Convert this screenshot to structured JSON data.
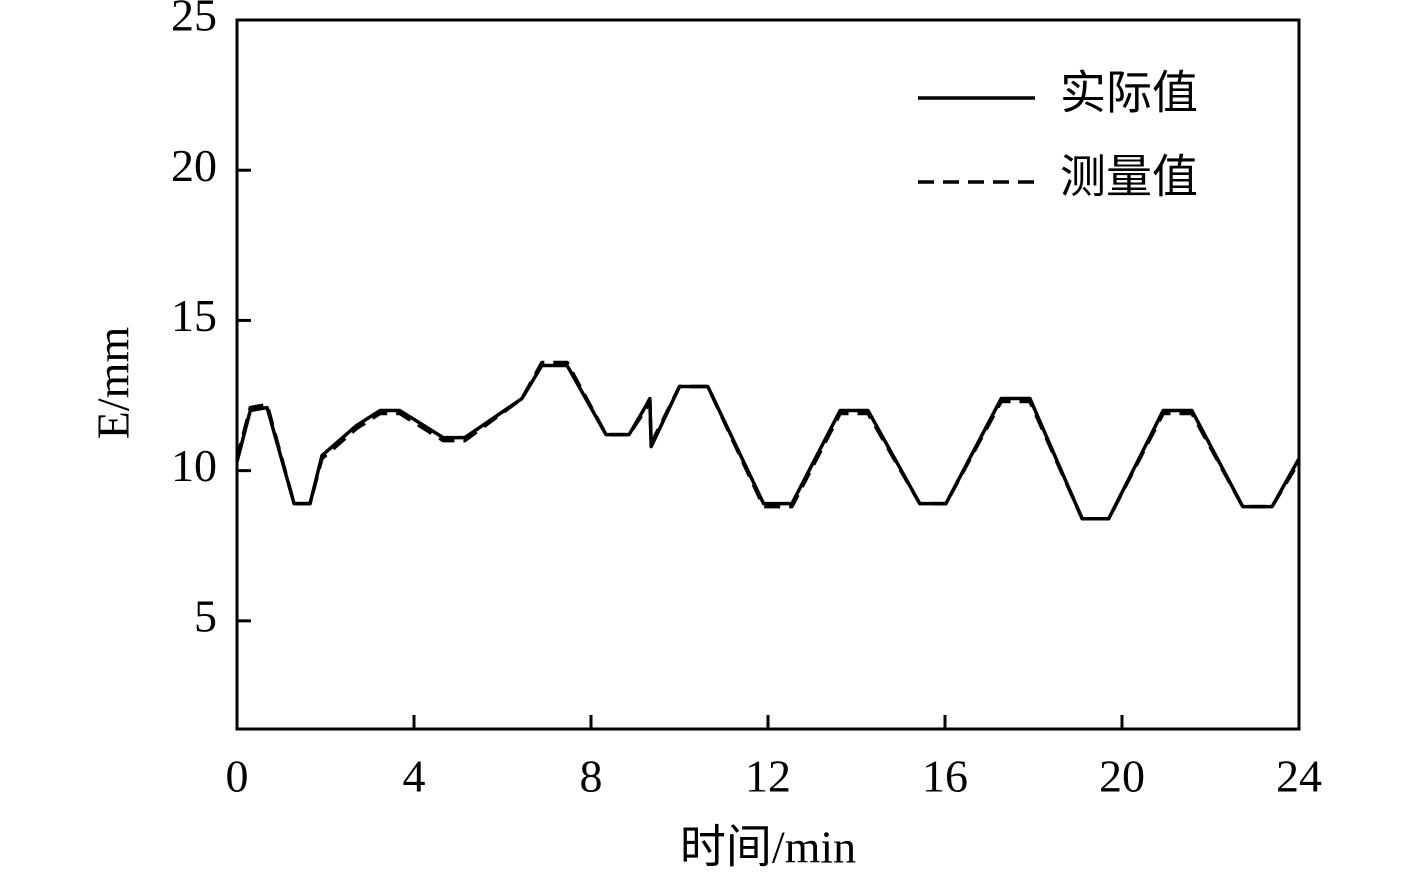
{
  "chart_data": {
    "type": "line",
    "xlabel": "时间/min",
    "ylabel": "E/mm",
    "x": [
      0,
      0.3,
      0.68,
      1.29,
      1.65,
      1.92,
      2.7,
      3.23,
      3.68,
      4.66,
      5.15,
      6.44,
      6.89,
      7.46,
      8.34,
      8.86,
      9.22,
      9.33,
      9.36,
      10.0,
      10.64,
      11.9,
      12.54,
      13.63,
      14.26,
      15.43,
      16.02,
      17.27,
      17.92,
      19.1,
      19.7,
      20.93,
      21.58,
      22.73,
      23.39,
      24
    ],
    "series": [
      {
        "name": "实际值",
        "color": "#000000",
        "dash": "solid",
        "values": [
          10.3,
          12.0,
          12.1,
          8.9,
          8.9,
          10.5,
          11.5,
          12.0,
          12.0,
          11.1,
          11.1,
          12.4,
          13.5,
          13.5,
          11.2,
          11.2,
          12.1,
          12.4,
          10.8,
          12.8,
          12.8,
          8.9,
          8.9,
          12.0,
          12.0,
          8.9,
          8.9,
          12.4,
          12.4,
          8.4,
          8.4,
          12.0,
          12.0,
          8.8,
          8.8,
          10.4
        ]
      },
      {
        "name": "测量值",
        "color": "#000000",
        "dash": "dashed",
        "values": [
          10.4,
          12.1,
          12.2,
          8.9,
          8.9,
          10.4,
          11.4,
          11.9,
          11.9,
          11.0,
          11.0,
          12.4,
          13.6,
          13.6,
          11.2,
          11.2,
          12.0,
          12.3,
          10.9,
          12.8,
          12.8,
          8.8,
          8.8,
          11.9,
          11.9,
          8.9,
          8.9,
          12.3,
          12.3,
          8.4,
          8.4,
          11.9,
          11.9,
          8.8,
          8.8,
          10.3
        ]
      }
    ],
    "xlim": [
      0,
      24
    ],
    "xticks": [
      0,
      4,
      8,
      12,
      16,
      20,
      24
    ],
    "ylim": [
      1.4,
      25
    ],
    "yticks": [
      5,
      10,
      15,
      20,
      25
    ],
    "legend": "upper right",
    "grid": false
  }
}
